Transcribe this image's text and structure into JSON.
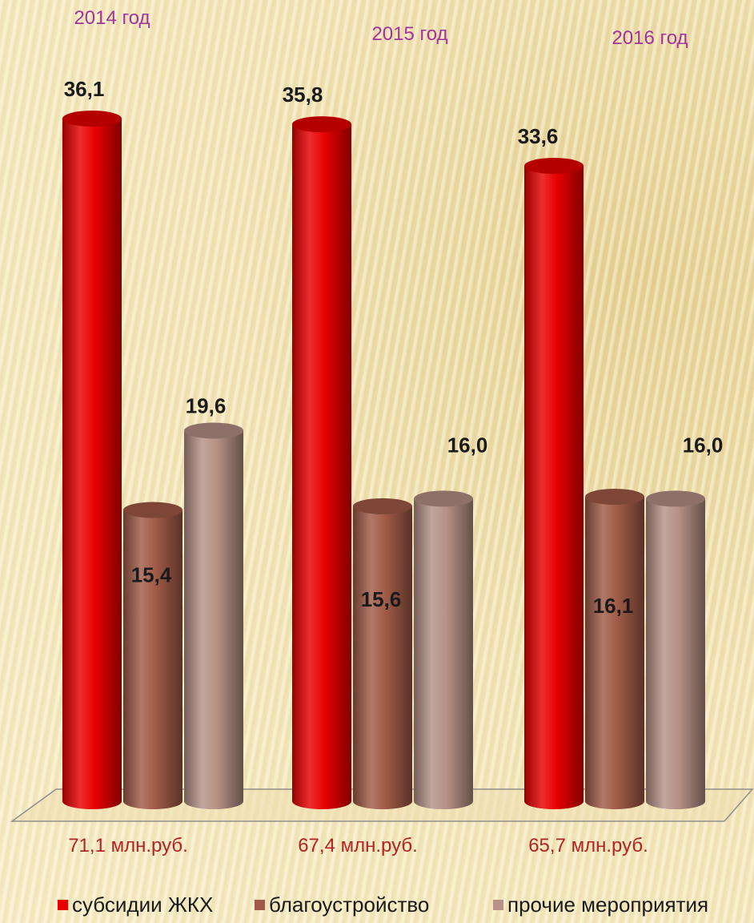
{
  "chart_data": {
    "type": "bar",
    "categories": [
      "2014 год",
      "2015 год",
      "2016 год"
    ],
    "series": [
      {
        "name": "субсидии ЖКХ",
        "values": [
          36.1,
          35.8,
          33.6
        ],
        "labels": [
          "36,1",
          "35,8",
          "33,6"
        ],
        "color": "#e80000"
      },
      {
        "name": "благоустройство",
        "values": [
          15.4,
          15.6,
          16.1
        ],
        "labels": [
          "15,4",
          "15,6",
          "16,1"
        ],
        "color": "#a05a47"
      },
      {
        "name": "прочие мероприятия",
        "values": [
          19.6,
          16.0,
          16.0
        ],
        "labels": [
          "19,6",
          "16,0",
          "16,0"
        ],
        "color": "#b59186"
      }
    ],
    "totals": [
      "71,1 млн.руб.",
      "67,4 млн.руб.",
      "65,7 млн.руб."
    ],
    "ylim": [
      0,
      40
    ],
    "legend_position": "bottom",
    "grid": false
  }
}
